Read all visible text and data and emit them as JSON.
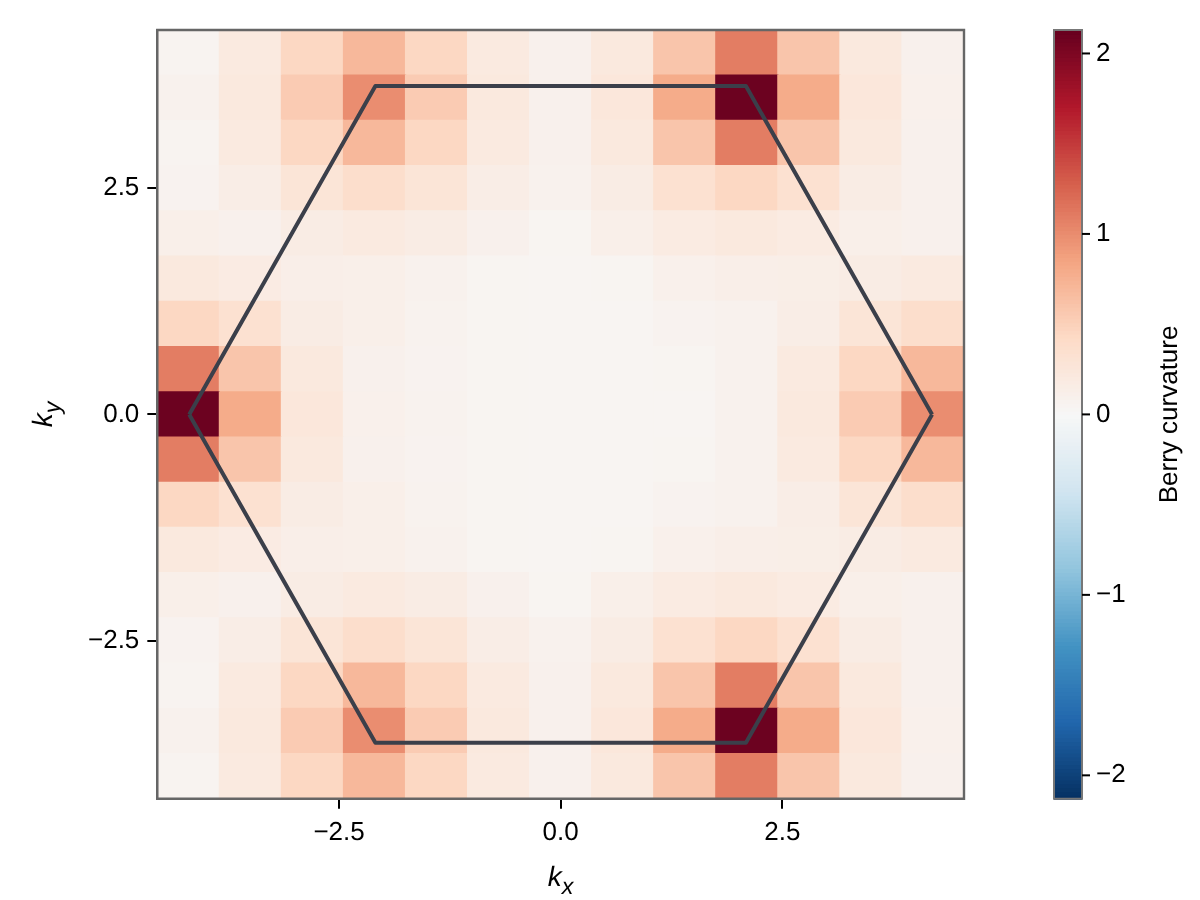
{
  "chart_data": {
    "type": "heatmap",
    "xlabel": "k$_{x}$",
    "ylabel": "k$_{y}$",
    "clabel": "Berry curvature",
    "x": [
      -4.2,
      -3.5,
      -2.8,
      -2.1,
      -1.4,
      -0.7,
      0,
      0.7,
      1.4,
      2.1,
      2.8,
      3.5,
      4.2
    ],
    "y": [
      4.0,
      3.5,
      3.0,
      2.5,
      2.0,
      1.5,
      1.0,
      0.5,
      0,
      -0.5,
      -1.0,
      -1.5,
      -2.0,
      -2.5,
      -3.0,
      -3.5,
      -4.0
    ],
    "cells": [
      [
        0.06,
        0.2,
        0.45,
        0.7,
        0.45,
        0.2,
        0.1,
        0.22,
        0.6,
        1.1,
        0.6,
        0.22,
        0.1
      ],
      [
        0.09,
        0.22,
        0.55,
        1.0,
        0.55,
        0.22,
        0.1,
        0.25,
        0.8,
        2.1,
        0.8,
        0.25,
        0.11
      ],
      [
        0.06,
        0.2,
        0.45,
        0.7,
        0.45,
        0.2,
        0.1,
        0.22,
        0.6,
        1.1,
        0.6,
        0.22,
        0.1
      ],
      [
        0.07,
        0.15,
        0.28,
        0.38,
        0.28,
        0.15,
        0.09,
        0.17,
        0.34,
        0.45,
        0.34,
        0.17,
        0.1
      ],
      [
        0.12,
        0.1,
        0.17,
        0.2,
        0.17,
        0.1,
        0.05,
        0.12,
        0.19,
        0.22,
        0.19,
        0.12,
        0.1
      ],
      [
        0.22,
        0.18,
        0.13,
        0.12,
        0.09,
        0.05,
        0.04,
        0.05,
        0.11,
        0.13,
        0.14,
        0.17,
        0.2
      ],
      [
        0.45,
        0.34,
        0.17,
        0.12,
        0.08,
        0.05,
        0.04,
        0.04,
        0.07,
        0.09,
        0.15,
        0.28,
        0.38
      ],
      [
        1.1,
        0.6,
        0.22,
        0.1,
        0.07,
        0.05,
        0.04,
        0.04,
        0.05,
        0.09,
        0.2,
        0.45,
        0.7
      ],
      [
        2.1,
        0.8,
        0.25,
        0.11,
        0.08,
        0.05,
        0.04,
        0.04,
        0.04,
        0.09,
        0.22,
        0.55,
        1.0
      ],
      [
        1.1,
        0.6,
        0.22,
        0.1,
        0.07,
        0.05,
        0.04,
        0.04,
        0.05,
        0.09,
        0.2,
        0.45,
        0.7
      ],
      [
        0.45,
        0.34,
        0.17,
        0.12,
        0.08,
        0.05,
        0.04,
        0.04,
        0.07,
        0.09,
        0.15,
        0.28,
        0.38
      ],
      [
        0.22,
        0.18,
        0.13,
        0.12,
        0.09,
        0.05,
        0.04,
        0.05,
        0.11,
        0.13,
        0.14,
        0.17,
        0.2
      ],
      [
        0.12,
        0.1,
        0.17,
        0.2,
        0.17,
        0.1,
        0.05,
        0.12,
        0.19,
        0.22,
        0.19,
        0.12,
        0.1
      ],
      [
        0.07,
        0.15,
        0.28,
        0.38,
        0.28,
        0.15,
        0.09,
        0.17,
        0.34,
        0.45,
        0.34,
        0.17,
        0.1
      ],
      [
        0.06,
        0.2,
        0.45,
        0.7,
        0.45,
        0.2,
        0.1,
        0.22,
        0.6,
        1.1,
        0.6,
        0.22,
        0.1
      ],
      [
        0.09,
        0.22,
        0.55,
        1.0,
        0.55,
        0.22,
        0.1,
        0.25,
        0.8,
        2.1,
        0.8,
        0.25,
        0.11
      ],
      [
        0.06,
        0.2,
        0.45,
        0.7,
        0.45,
        0.2,
        0.1,
        0.22,
        0.6,
        1.1,
        0.6,
        0.22,
        0.1
      ]
    ],
    "clim": [
      -2.13,
      2.13
    ],
    "cticks": [
      {
        "value": -2,
        "label": "−2"
      },
      {
        "value": -1,
        "label": "−1"
      },
      0,
      1,
      2
    ],
    "xlim": [
      -4.55,
      4.55
    ],
    "ylim": [
      -4.25,
      4.25
    ],
    "xticks": [
      {
        "value": -2.5,
        "label": "−2.5"
      },
      {
        "value": 0,
        "label": "0.0"
      },
      2.5
    ],
    "yticks": [
      {
        "value": -2.5,
        "label": "−2.5"
      },
      {
        "value": 0,
        "label": "0.0"
      },
      2.5
    ],
    "series": [
      {
        "type": "line",
        "color": "#3b3f4a",
        "x": [
          -4.19,
          -2.09,
          2.09,
          4.19
        ],
        "values": [
          0,
          3.63,
          3.63,
          0
        ]
      },
      {
        "type": "line",
        "color": "#3b3f4a",
        "x": [
          -4.19,
          -2.09,
          2.09,
          4.19
        ],
        "values": [
          0,
          -3.63,
          -3.63,
          0
        ]
      }
    ]
  }
}
